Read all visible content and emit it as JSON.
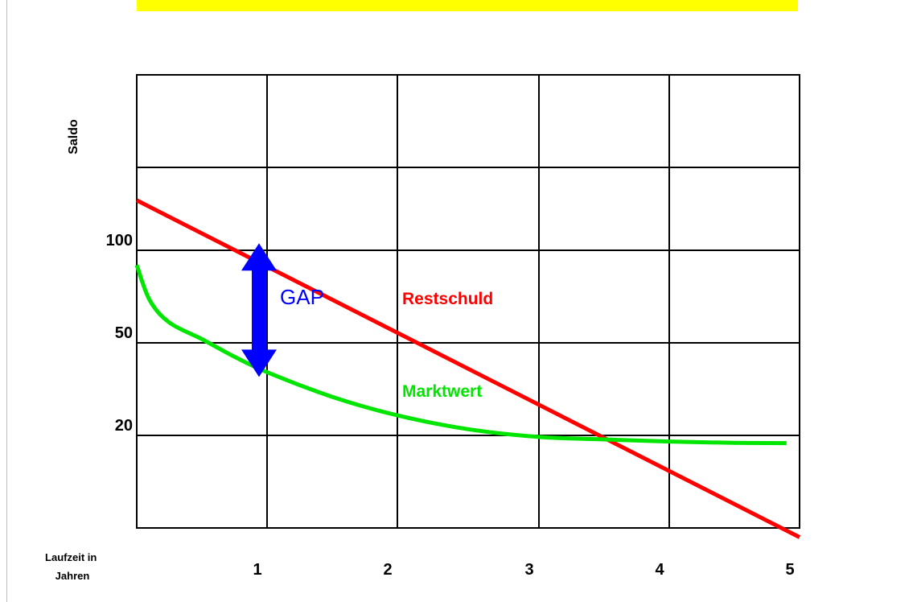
{
  "chart_data": {
    "type": "line",
    "xlabel": "Laufzeit in Jahren",
    "xlabel_lines": [
      "Laufzeit in",
      "Jahren"
    ],
    "ylabel": "Saldo",
    "x_ticks": [
      1,
      2,
      3,
      4,
      5
    ],
    "y_ticks": [
      20,
      50,
      100
    ],
    "xlim": [
      0,
      5
    ],
    "grid": true,
    "series": [
      {
        "name": "Restschuld",
        "color": "#ff0000",
        "x": [
          0,
          5
        ],
        "y": [
          127,
          -13
        ]
      },
      {
        "name": "Marktwert",
        "color": "#00e600",
        "x": [
          0,
          0.1,
          0.25,
          0.5,
          0.75,
          1,
          1.5,
          2,
          2.5,
          3,
          3.5,
          4,
          4.5,
          4.9
        ],
        "y": [
          92,
          73,
          61,
          52,
          45.5,
          40.5,
          32.5,
          26.5,
          22,
          19.5,
          18.7,
          18,
          17.6,
          17.5
        ]
      }
    ],
    "annotations": [
      {
        "text": "GAP",
        "color": "#0000ff",
        "x": 1,
        "y_from": 40.5,
        "y_to": 99
      }
    ],
    "colors": {
      "banner": "#ffff00",
      "gap_arrow": "#0000ff",
      "grid": "#000000"
    }
  }
}
